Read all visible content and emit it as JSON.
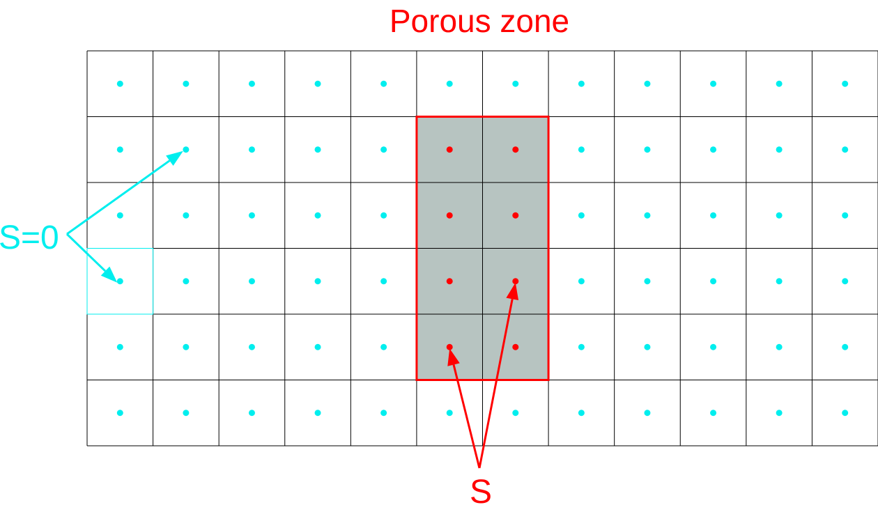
{
  "title": "Porous zone",
  "labels": {
    "outside": "S=0",
    "inside": "S"
  },
  "grid": {
    "columns": 12,
    "rows": 6
  },
  "porous_zone": {
    "col_start": 5,
    "col_end": 6,
    "row_start": 1,
    "row_end": 4
  },
  "highlighted_cell": {
    "col": 0,
    "row": 3
  },
  "arrows": {
    "outside_targets": [
      {
        "col": 1,
        "row": 1
      },
      {
        "col": 0,
        "row": 3
      }
    ],
    "inside_targets": [
      {
        "col": 5,
        "row": 4
      },
      {
        "col": 6,
        "row": 3
      }
    ]
  },
  "colors": {
    "outside_point": "#00eeee",
    "inside_point": "#ff0000",
    "zone_fill": "#b7c4c1",
    "zone_border": "#ff0000",
    "grid_line": "#000000"
  }
}
